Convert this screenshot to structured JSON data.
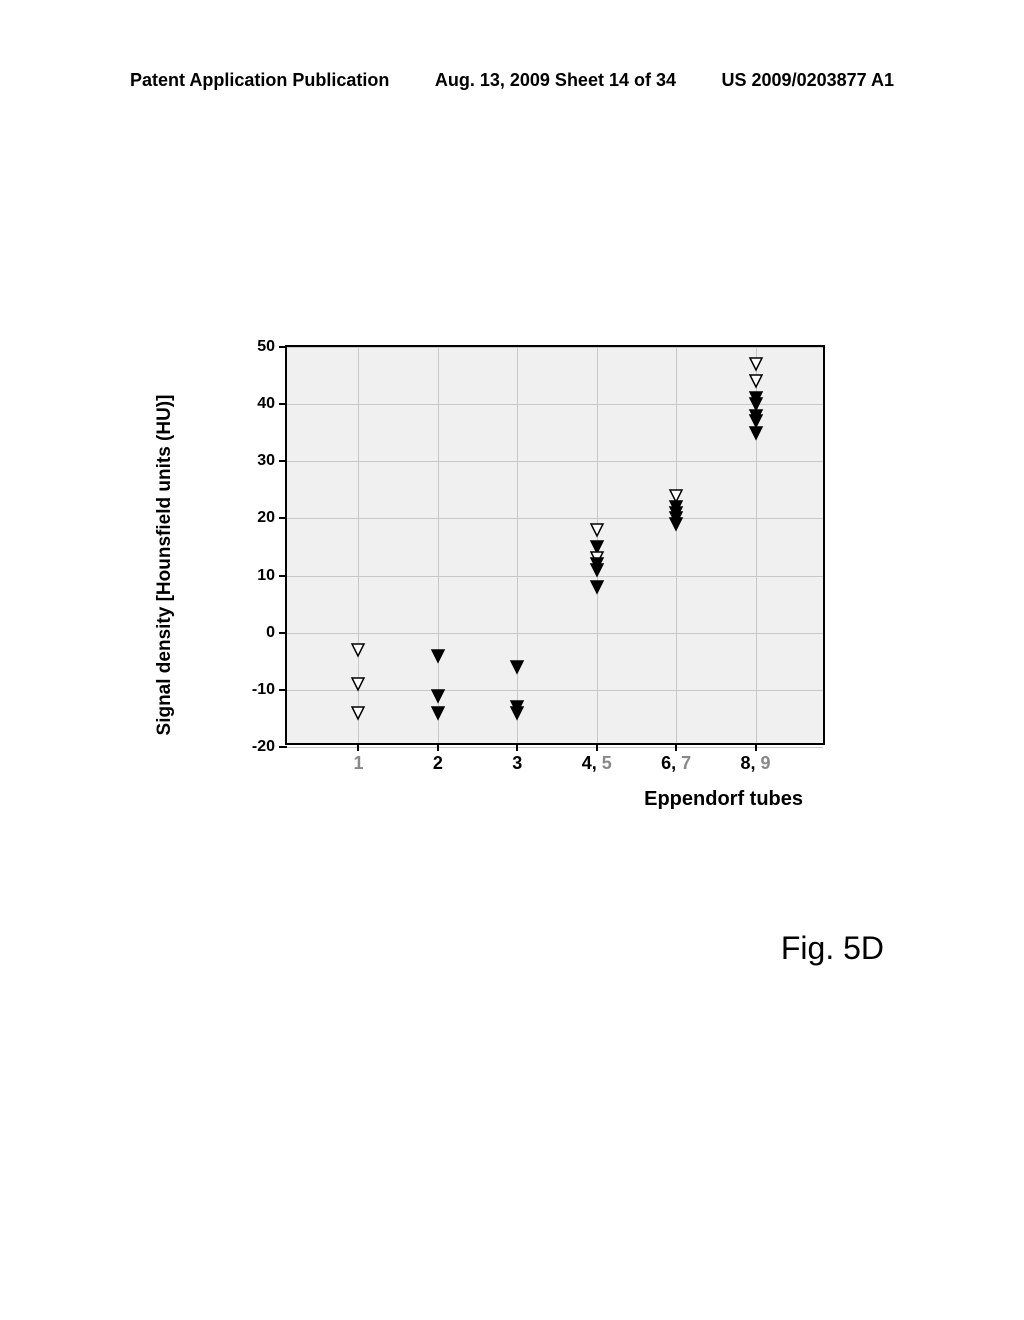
{
  "header": {
    "left": "Patent Application Publication",
    "center": "Aug. 13, 2009  Sheet 14 of 34",
    "right": "US 2009/0203877 A1"
  },
  "chart": {
    "type": "scatter",
    "ylabel": "Signal density [Hounsfield units (HU)]",
    "xlabel": "Eppendorf tubes",
    "ylim": [
      -20,
      50
    ],
    "yticks": [
      -20,
      -10,
      0,
      10,
      20,
      30,
      40,
      50
    ],
    "xcategories": [
      {
        "x": 1,
        "label": "1",
        "gray": true
      },
      {
        "x": 2,
        "label": "2",
        "gray": false
      },
      {
        "x": 3,
        "label": "3",
        "gray": false
      },
      {
        "x": 4,
        "label": "4,",
        "gray": false,
        "suffix": "5"
      },
      {
        "x": 5,
        "label": "6,",
        "gray": false,
        "suffix": "7"
      },
      {
        "x": 6,
        "label": "8,",
        "gray": false,
        "suffix": "9"
      }
    ],
    "background_color": "#f0f0f0",
    "grid_color": "#c8c8c8",
    "marker_fill_open": "#ffffff",
    "marker_fill_solid": "#000000",
    "marker_stroke": "#000000",
    "marker_size": 12,
    "points": [
      {
        "x": 1,
        "y": -3,
        "fill": "open"
      },
      {
        "x": 1,
        "y": -9,
        "fill": "open"
      },
      {
        "x": 1,
        "y": -14,
        "fill": "open"
      },
      {
        "x": 2,
        "y": -4,
        "fill": "solid"
      },
      {
        "x": 2,
        "y": -11,
        "fill": "solid"
      },
      {
        "x": 2,
        "y": -14,
        "fill": "solid"
      },
      {
        "x": 3,
        "y": -6,
        "fill": "solid"
      },
      {
        "x": 3,
        "y": -13,
        "fill": "solid"
      },
      {
        "x": 3,
        "y": -14,
        "fill": "solid"
      },
      {
        "x": 4,
        "y": 18,
        "fill": "open"
      },
      {
        "x": 4,
        "y": 15,
        "fill": "solid"
      },
      {
        "x": 4,
        "y": 13,
        "fill": "open"
      },
      {
        "x": 4,
        "y": 12,
        "fill": "solid"
      },
      {
        "x": 4,
        "y": 11,
        "fill": "solid"
      },
      {
        "x": 4,
        "y": 8,
        "fill": "solid"
      },
      {
        "x": 5,
        "y": 24,
        "fill": "open"
      },
      {
        "x": 5,
        "y": 22,
        "fill": "solid"
      },
      {
        "x": 5,
        "y": 21,
        "fill": "solid"
      },
      {
        "x": 5,
        "y": 20,
        "fill": "solid"
      },
      {
        "x": 5,
        "y": 19,
        "fill": "solid"
      },
      {
        "x": 6,
        "y": 47,
        "fill": "open"
      },
      {
        "x": 6,
        "y": 44,
        "fill": "open"
      },
      {
        "x": 6,
        "y": 41,
        "fill": "solid"
      },
      {
        "x": 6,
        "y": 40,
        "fill": "solid"
      },
      {
        "x": 6,
        "y": 38,
        "fill": "solid"
      },
      {
        "x": 6,
        "y": 37,
        "fill": "solid"
      },
      {
        "x": 6,
        "y": 35,
        "fill": "solid"
      }
    ]
  },
  "figure_label": "Fig. 5D"
}
